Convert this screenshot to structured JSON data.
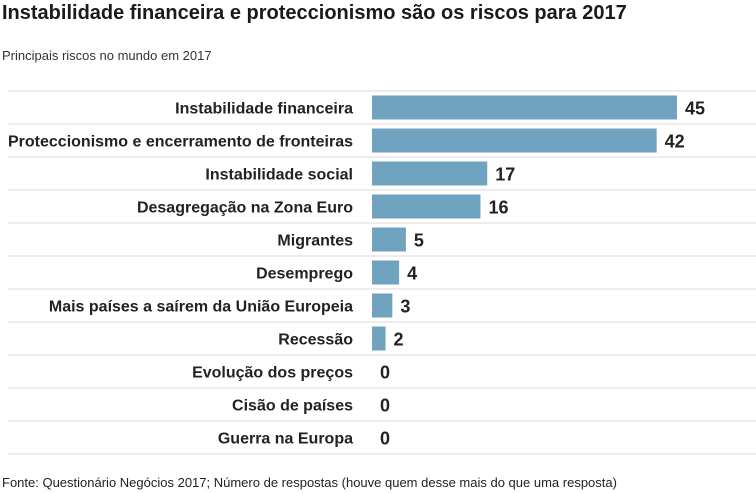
{
  "chart_data": {
    "type": "bar",
    "orientation": "horizontal",
    "title": "Instabilidade financeira e proteccionismo são os riscos para 2017",
    "subtitle": "Principais riscos no mundo em 2017",
    "source": "Fonte: Questionário Negócios 2017; Número de respostas (houve quem desse mais do  que uma resposta)",
    "categories": [
      "Instabilidade financeira",
      "Proteccionismo e encerramento de fronteiras",
      "Instabilidade social",
      "Desagregação na Zona Euro",
      "Migrantes",
      "Desemprego",
      "Mais países a saírem da União Europeia",
      "Recessão",
      "Evolução dos preços",
      "Cisão de países",
      "Guerra na Europa"
    ],
    "values": [
      45,
      42,
      17,
      16,
      5,
      4,
      3,
      2,
      0,
      0,
      0
    ],
    "xlim": [
      0,
      45
    ],
    "grid": true,
    "bar_color": "#6fa3bf"
  }
}
